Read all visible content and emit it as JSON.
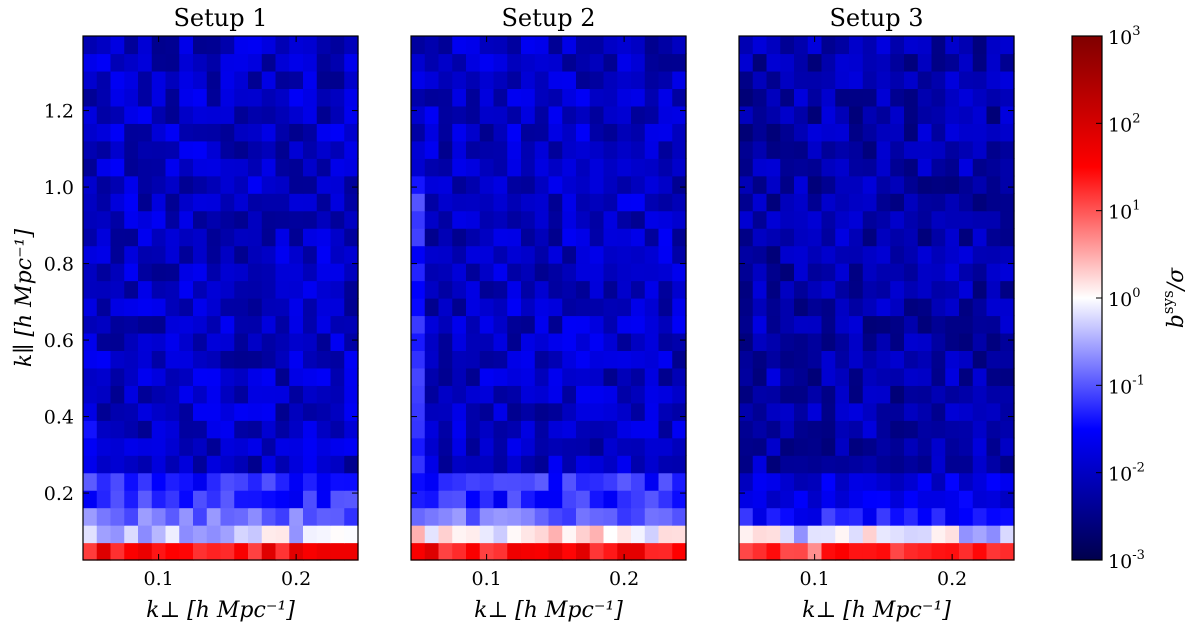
{
  "chart_data": [
    {
      "type": "heatmap",
      "title": "Setup 1",
      "xlabel": "k⊥ [h Mpc⁻¹]",
      "ylabel": "k∥ [h Mpc⁻¹]",
      "xlim": [
        0.045,
        0.245
      ],
      "ylim": [
        0.025,
        1.395
      ],
      "x_ticks": [
        0.1,
        0.2
      ],
      "x_tick_labels": [
        "0.1",
        "0.2"
      ],
      "y_ticks": [
        0.2,
        0.4,
        0.6,
        0.8,
        1.0,
        1.2
      ],
      "y_tick_labels": [
        "0.2",
        "0.4",
        "0.6",
        "0.8",
        "1.0",
        "1.2"
      ],
      "grid": "20 × 30 bins (k⊥ × k∥)",
      "colorscale": "seismic, log",
      "value_summary": {
        "row_k_par_0.04": "~10 to 10^2 (red)",
        "row_k_par_0.09": "~0.3 to 3 (white/pink)",
        "rows_k_par_0.14_to_0.23": "~0.02 to 0.3 (light blue)",
        "rows_above_0.25": "~0.003 to 0.03 (blue)"
      }
    },
    {
      "type": "heatmap",
      "title": "Setup 2",
      "xlabel": "k⊥ [h Mpc⁻¹]",
      "xlim": [
        0.045,
        0.245
      ],
      "ylim": [
        0.025,
        1.395
      ],
      "x_ticks": [
        0.1,
        0.2
      ],
      "x_tick_labels": [
        "0.1",
        "0.2"
      ],
      "y_ticks": [
        0.2,
        0.4,
        0.6,
        0.8,
        1.0,
        1.2
      ],
      "grid": "20 × 30 bins (k⊥ × k∥)",
      "colorscale": "seismic, log",
      "value_summary": {
        "row_k_par_0.04": "~10 to 10^2 (red)",
        "row_k_par_0.09": "~1 to 10 (pink/white)",
        "rows_k_par_0.14_to_0.23": "~0.05 to 0.3 (light blue)",
        "left_column": "elevated ~0.05 to 0.3 up to k∥ ≈ 1.1",
        "rows_above_0.25": "~0.003 to 0.03 (blue)"
      }
    },
    {
      "type": "heatmap",
      "title": "Setup 3",
      "xlabel": "k⊥ [h Mpc⁻¹]",
      "xlim": [
        0.045,
        0.245
      ],
      "ylim": [
        0.025,
        1.395
      ],
      "x_ticks": [
        0.1,
        0.2
      ],
      "x_tick_labels": [
        "0.1",
        "0.2"
      ],
      "y_ticks": [
        0.2,
        0.4,
        0.6,
        0.8,
        1.0,
        1.2
      ],
      "grid": "20 × 30 bins (k⊥ × k∥)",
      "colorscale": "seismic, log",
      "value_summary": {
        "row_k_par_0.04": "~3 to 10^2 (red/pink)",
        "row_k_par_0.09": "~0.2 to 5 (white/pink)",
        "rows_k_par_0.14_to_0.23": "~0.01 to 0.1 (blue)",
        "rows_above_0.25": "~0.002 to 0.02 (dark blue)"
      }
    }
  ],
  "colorbar": {
    "label": "b^sys / σ",
    "label_main": "b",
    "label_sup": "sys",
    "label_rest": "/σ",
    "scale": "log",
    "range": [
      0.001,
      1000
    ],
    "tick_exponents": [
      "-3",
      "-2",
      "-1",
      "0",
      "1",
      "2",
      "3"
    ],
    "tick_base": "10"
  },
  "colors": {
    "low": "#00004c",
    "mid_low": "#0000ff",
    "center": "#ffffff",
    "mid_high": "#ff0000",
    "high": "#800000"
  }
}
